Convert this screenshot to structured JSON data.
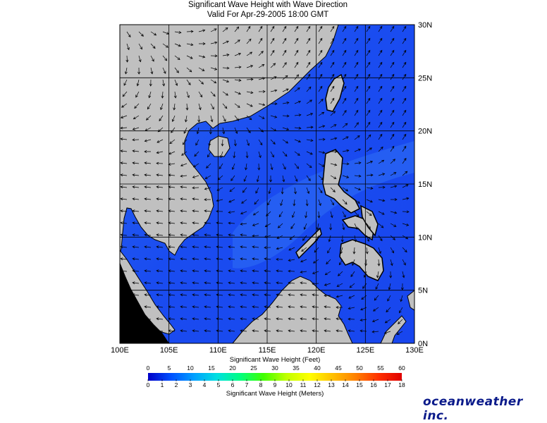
{
  "header": {
    "title": "Significant Wave Height with Wave Direction",
    "subtitle": "Valid For Apr-29-2005 18:00 GMT"
  },
  "map": {
    "lon_range": [
      100,
      130
    ],
    "lat_range": [
      0,
      30
    ],
    "lon_labels": [
      "100E",
      "105E",
      "110E",
      "115E",
      "120E",
      "125E",
      "130E"
    ],
    "lat_labels": [
      "30N",
      "25N",
      "20N",
      "15N",
      "10N",
      "5N",
      "0N"
    ],
    "colors": {
      "land": "#c0c0c0",
      "sea_low": "#1a4cf0",
      "sea_mid": "#2a66f2",
      "coast_dark": "#000000"
    },
    "wave_direction": "mostly toward west-southwest in the south, toward northeast in the north"
  },
  "colorbar": {
    "feet_title": "Significant Wave Height (Feet)",
    "meters_title": "Significant Wave Height (Meters)",
    "feet_labels": [
      "0",
      "5",
      "10",
      "15",
      "20",
      "25",
      "30",
      "35",
      "40",
      "45",
      "50",
      "55",
      "60"
    ],
    "meter_labels": [
      "0",
      "1",
      "2",
      "3",
      "4",
      "5",
      "6",
      "7",
      "8",
      "9",
      "10",
      "11",
      "12",
      "13",
      "14",
      "15",
      "16",
      "17",
      "18"
    ],
    "gradient_colors": [
      "#0000c8",
      "#0050ff",
      "#00a0ff",
      "#00e0e0",
      "#00ff80",
      "#40ff00",
      "#c0ff00",
      "#ffff00",
      "#ffc000",
      "#ff8000",
      "#ff3000",
      "#e00000"
    ]
  },
  "brand": "oceanweather inc."
}
